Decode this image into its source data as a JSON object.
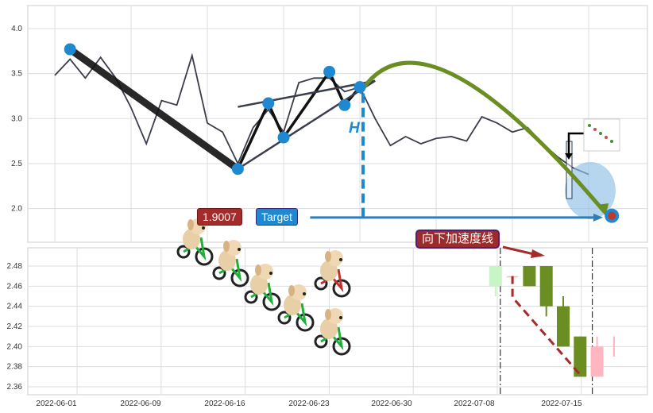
{
  "chart_data": [
    {
      "type": "line",
      "panel": "top",
      "ylim": [
        1.63,
        4.26
      ],
      "yticks": [
        "2.0",
        "2.5",
        "3.0",
        "3.5",
        "4.0"
      ],
      "grid": true,
      "price": [
        [
          "2022-06-01",
          3.48
        ],
        [
          "2022-06-02",
          3.66
        ],
        [
          "2022-06-06",
          3.45
        ],
        [
          "2022-06-07",
          3.68
        ],
        [
          "2022-06-08",
          3.45
        ],
        [
          "2022-06-09",
          3.12
        ],
        [
          "2022-06-10",
          2.72
        ],
        [
          "2022-06-13",
          3.2
        ],
        [
          "2022-06-14",
          3.15
        ],
        [
          "2022-06-15",
          3.7
        ],
        [
          "2022-06-16",
          2.95
        ],
        [
          "2022-06-17",
          2.85
        ],
        [
          "2022-06-20",
          2.5
        ],
        [
          "2022-06-21",
          2.9
        ],
        [
          "2022-06-22",
          3.1
        ],
        [
          "2022-06-23",
          2.85
        ],
        [
          "2022-06-24",
          3.4
        ],
        [
          "2022-06-27",
          3.45
        ],
        [
          "2022-06-28",
          3.45
        ],
        [
          "2022-06-29",
          3.3
        ],
        [
          "2022-06-30",
          3.35
        ],
        [
          "2022-07-01",
          3.0
        ],
        [
          "2022-07-04",
          2.7
        ],
        [
          "2022-07-05",
          2.8
        ],
        [
          "2022-07-06",
          2.72
        ],
        [
          "2022-07-07",
          2.78
        ],
        [
          "2022-07-08",
          2.8
        ],
        [
          "2022-07-11",
          2.75
        ],
        [
          "2022-07-12",
          3.02
        ],
        [
          "2022-07-13",
          2.95
        ],
        [
          "2022-07-14",
          2.85
        ],
        [
          "2022-07-15",
          2.9
        ],
        [
          "2022-07-18",
          2.72
        ],
        [
          "2022-07-19",
          2.57
        ],
        [
          "2022-07-20",
          2.45
        ],
        [
          "2022-07-21",
          2.38
        ]
      ],
      "pattern_points": [
        [
          "2022-06-02",
          3.77
        ],
        [
          "2022-06-20",
          2.44
        ],
        [
          "2022-06-22",
          3.17
        ],
        [
          "2022-06-23",
          2.79
        ],
        [
          "2022-06-28",
          3.52
        ],
        [
          "2022-06-29",
          3.15
        ],
        [
          "2022-06-30",
          3.35
        ]
      ],
      "upper_trendline": [
        [
          "2022-06-20",
          3.13
        ],
        [
          "2022-07-01",
          3.42
        ]
      ],
      "lower_trendline": [
        [
          "2022-06-20",
          2.44
        ],
        [
          "2022-07-01",
          3.42
        ]
      ],
      "neckline_marker": {
        "label": "H",
        "x": "2022-06-30",
        "from": 3.28,
        "to": 1.9007
      },
      "target": {
        "value": 1.9007,
        "value_label": "1.9007",
        "label": "Target",
        "from": "2022-06-27",
        "to": "2022-07-21"
      },
      "forecast_arc": [
        [
          "2022-06-30",
          3.28
        ],
        [
          "2022-07-08",
          3.32
        ],
        [
          "2022-07-22",
          1.97
        ]
      ],
      "target_point": [
        "2022-07-22",
        1.92
      ],
      "highlight_zone": {
        "x": "2022-07-21",
        "y": 2.2
      },
      "colors": {
        "price": "#3a3d4a",
        "points": "#1e88d0",
        "arc": "#6b8e23",
        "target": "#2e7fb8",
        "value_label": "#a52a2a",
        "target_label": "#1e88d0"
      }
    },
    {
      "type": "candlestick",
      "panel": "bottom",
      "ylim": [
        2.355,
        2.498
      ],
      "yticks": [
        "2.36",
        "2.38",
        "2.40",
        "2.42",
        "2.44",
        "2.46",
        "2.48"
      ],
      "xticks": [
        "2022-06-01",
        "2022-06-09",
        "2022-06-16",
        "2022-06-23",
        "2022-06-30",
        "2022-07-08",
        "2022-07-15"
      ],
      "grid": true,
      "candles": [
        {
          "date": "2022-07-11",
          "open": 2.48,
          "high": 2.48,
          "low": 2.45,
          "close": 2.46,
          "color": "#c8f5c8"
        },
        {
          "date": "2022-07-12",
          "open": 2.47,
          "high": 2.47,
          "low": 2.47,
          "close": 2.47,
          "color": "#f4b8b8"
        },
        {
          "date": "2022-07-13",
          "open": 2.48,
          "high": 2.48,
          "low": 2.46,
          "close": 2.46,
          "color": "#6b8e23"
        },
        {
          "date": "2022-07-14",
          "open": 2.48,
          "high": 2.48,
          "low": 2.43,
          "close": 2.44,
          "color": "#6b8e23"
        },
        {
          "date": "2022-07-15",
          "open": 2.44,
          "high": 2.45,
          "low": 2.4,
          "close": 2.4,
          "color": "#6b8e23"
        },
        {
          "date": "2022-07-18",
          "open": 2.41,
          "high": 2.41,
          "low": 2.37,
          "close": 2.37,
          "color": "#6b8e23"
        },
        {
          "date": "2022-07-19",
          "open": 2.37,
          "high": 2.41,
          "low": 2.37,
          "close": 2.4,
          "color": "#ffb6c1"
        },
        {
          "date": "2022-07-20",
          "open": 2.41,
          "high": 2.41,
          "low": 2.39,
          "close": 2.39,
          "color": "#ffb6c1"
        }
      ],
      "window_lines": [
        "2022-07-11",
        "2022-07-19"
      ],
      "accel_line": [
        [
          "2022-07-12",
          2.47
        ],
        [
          "2022-07-12",
          2.449
        ],
        [
          "2022-07-18",
          2.372
        ]
      ],
      "annotation": {
        "label": "向下加速度线",
        "color": "#9b2c2c",
        "border": "#5a1a6e"
      }
    }
  ]
}
